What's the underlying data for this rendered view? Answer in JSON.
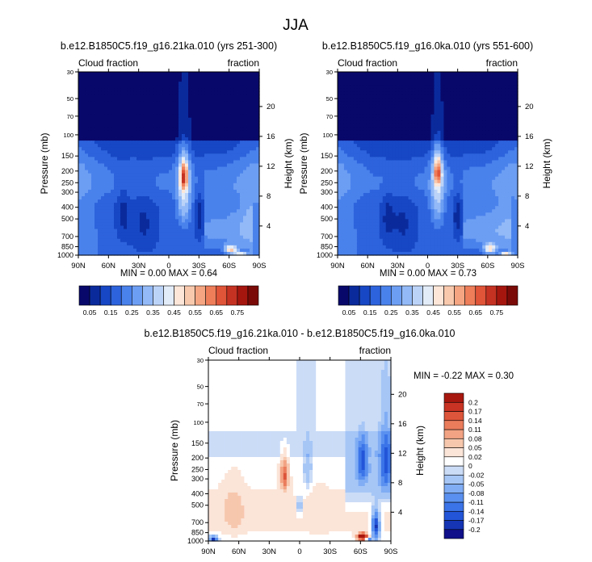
{
  "figure_title": "JJA",
  "chart_data": [
    {
      "type": "heatmap",
      "id": "case1",
      "title": "b.e12.B1850C5.f19_g16.21ka.010 (yrs 251-300)",
      "left_label": "Cloud fraction",
      "right_label": "fraction",
      "xlabel": "",
      "ylabel": "Pressure (mb)",
      "y2label": "Height (km)",
      "xlim": [
        90,
        -90
      ],
      "ylim": [
        1000,
        30
      ],
      "x_ticks": [
        {
          "value": 90,
          "label": "90N"
        },
        {
          "value": 60,
          "label": "60N"
        },
        {
          "value": 30,
          "label": "30N"
        },
        {
          "value": 0,
          "label": "0"
        },
        {
          "value": -30,
          "label": "30S"
        },
        {
          "value": -60,
          "label": "60S"
        },
        {
          "value": -90,
          "label": "90S"
        }
      ],
      "y_ticks": [
        1000,
        850,
        700,
        500,
        400,
        300,
        250,
        200,
        150,
        100,
        70,
        50,
        30
      ],
      "height_ticks": [
        {
          "value": 4,
          "label": "4"
        },
        {
          "value": 8,
          "label": "8"
        },
        {
          "value": 12,
          "label": "12"
        },
        {
          "value": 16,
          "label": "16"
        },
        {
          "value": 20,
          "label": "20"
        }
      ],
      "stats_text": "MIN =   0.00   MAX =   0.64",
      "min": 0.0,
      "max": 0.64,
      "colorbar_orientation": "horizontal",
      "colorbar_levels": [
        "0.05",
        "0.15",
        "0.25",
        "0.35",
        "0.45",
        "0.55",
        "0.65",
        "0.75"
      ],
      "features": [
        {
          "lat": -15,
          "p": 220,
          "value": 0.58,
          "lat_width": 4,
          "p_width": 60
        },
        {
          "lat": -15,
          "p": 320,
          "value": 0.4,
          "lat_width": 7,
          "p_width": 220
        },
        {
          "lat": -62,
          "p": 900,
          "value": 0.55,
          "lat_width": 6,
          "p_width": 70
        },
        {
          "lat": -72,
          "p": 985,
          "value": 0.6,
          "lat_width": 6,
          "p_width": 20
        },
        {
          "lat": -55,
          "p": 600,
          "value": 0.27,
          "lat_width": 15,
          "p_width": 300
        },
        {
          "lat": -80,
          "p": 480,
          "value": 0.33,
          "lat_width": 6,
          "p_width": 200
        },
        {
          "lat": 45,
          "p": 450,
          "value": 0.07,
          "lat_width": 6,
          "p_width": 220
        },
        {
          "lat": -30,
          "p": 480,
          "value": 0.06,
          "lat_width": 4,
          "p_width": 200
        },
        {
          "lat": 70,
          "p": 300,
          "value": 0.22,
          "lat_width": 18,
          "p_width": 150
        },
        {
          "lat": 70,
          "p": 850,
          "value": 0.2,
          "lat_width": 15,
          "p_width": 150
        }
      ]
    },
    {
      "type": "heatmap",
      "id": "case2",
      "title": "b.e12.B1850C5.f19_g16.0ka.010 (yrs 551-600)",
      "left_label": "Cloud fraction",
      "right_label": "fraction",
      "xlabel": "",
      "ylabel": "Pressure (mb)",
      "y2label": "Height (km)",
      "xlim": [
        90,
        -90
      ],
      "ylim": [
        1000,
        30
      ],
      "x_ticks": [
        {
          "value": 90,
          "label": "90N"
        },
        {
          "value": 60,
          "label": "60N"
        },
        {
          "value": 30,
          "label": "30N"
        },
        {
          "value": 0,
          "label": "0"
        },
        {
          "value": -30,
          "label": "30S"
        },
        {
          "value": -60,
          "label": "60S"
        },
        {
          "value": -90,
          "label": "90S"
        }
      ],
      "y_ticks": [
        1000,
        850,
        700,
        500,
        400,
        300,
        250,
        200,
        150,
        100,
        70,
        50,
        30
      ],
      "height_ticks": [
        {
          "value": 4,
          "label": "4"
        },
        {
          "value": 8,
          "label": "8"
        },
        {
          "value": 12,
          "label": "12"
        },
        {
          "value": 16,
          "label": "16"
        },
        {
          "value": 20,
          "label": "20"
        }
      ],
      "stats_text": "MIN =   0.00   MAX =   0.73",
      "min": 0.0,
      "max": 0.73,
      "colorbar_orientation": "horizontal",
      "colorbar_levels": [
        "0.05",
        "0.15",
        "0.25",
        "0.35",
        "0.45",
        "0.55",
        "0.65",
        "0.75"
      ],
      "features": [
        {
          "lat": -10,
          "p": 200,
          "value": 0.55,
          "lat_width": 4,
          "p_width": 60
        },
        {
          "lat": -10,
          "p": 320,
          "value": 0.38,
          "lat_width": 7,
          "p_width": 220
        },
        {
          "lat": -62,
          "p": 880,
          "value": 0.5,
          "lat_width": 6,
          "p_width": 80
        },
        {
          "lat": -78,
          "p": 985,
          "value": 0.72,
          "lat_width": 5,
          "p_width": 20
        },
        {
          "lat": -55,
          "p": 600,
          "value": 0.28,
          "lat_width": 15,
          "p_width": 300
        },
        {
          "lat": 40,
          "p": 500,
          "value": 0.07,
          "lat_width": 6,
          "p_width": 220
        },
        {
          "lat": -30,
          "p": 480,
          "value": 0.06,
          "lat_width": 4,
          "p_width": 200
        },
        {
          "lat": 70,
          "p": 300,
          "value": 0.22,
          "lat_width": 18,
          "p_width": 150
        },
        {
          "lat": 70,
          "p": 850,
          "value": 0.2,
          "lat_width": 15,
          "p_width": 150
        }
      ]
    },
    {
      "type": "heatmap",
      "id": "diff",
      "title": "b.e12.B1850C5.f19_g16.21ka.010 - b.e12.B1850C5.f19_g16.0ka.010",
      "left_label": "Cloud fraction",
      "right_label": "fraction",
      "xlabel": "",
      "ylabel": "Pressure (mb)",
      "y2label": "Height (km)",
      "xlim": [
        90,
        -90
      ],
      "ylim": [
        1000,
        30
      ],
      "x_ticks": [
        {
          "value": 90,
          "label": "90N"
        },
        {
          "value": 60,
          "label": "60N"
        },
        {
          "value": 30,
          "label": "30N"
        },
        {
          "value": 0,
          "label": "0"
        },
        {
          "value": -30,
          "label": "30S"
        },
        {
          "value": -60,
          "label": "60S"
        },
        {
          "value": -90,
          "label": "90S"
        }
      ],
      "y_ticks": [
        1000,
        850,
        700,
        500,
        400,
        300,
        250,
        200,
        150,
        100,
        70,
        50,
        30
      ],
      "height_ticks": [
        {
          "value": 4,
          "label": "4"
        },
        {
          "value": 8,
          "label": "8"
        },
        {
          "value": 12,
          "label": "12"
        },
        {
          "value": 16,
          "label": "16"
        },
        {
          "value": 20,
          "label": "20"
        }
      ],
      "stats_text": "MIN =  -0.22   MAX =   0.30",
      "min": -0.22,
      "max": 0.3,
      "colorbar_orientation": "vertical",
      "colorbar_levels": [
        "-0.2",
        "-0.17",
        "-0.14",
        "-0.11",
        "-0.08",
        "-0.05",
        "-0.02",
        "0",
        "0.02",
        "0.05",
        "0.08",
        "0.11",
        "0.14",
        "0.17",
        "0.2"
      ],
      "features": [
        {
          "lat": -62,
          "p": 920,
          "value": 0.28,
          "lat_width": 5,
          "p_width": 70
        },
        {
          "lat": -68,
          "p": 985,
          "value": -0.2,
          "lat_width": 3,
          "p_width": 25
        },
        {
          "lat": -75,
          "p": 750,
          "value": -0.18,
          "lat_width": 4,
          "p_width": 200
        },
        {
          "lat": 85,
          "p": 960,
          "value": -0.18,
          "lat_width": 4,
          "p_width": 50
        },
        {
          "lat": -62,
          "p": 220,
          "value": -0.16,
          "lat_width": 5,
          "p_width": 90
        },
        {
          "lat": -85,
          "p": 220,
          "value": -0.15,
          "lat_width": 6,
          "p_width": 150
        },
        {
          "lat": 15,
          "p": 280,
          "value": 0.15,
          "lat_width": 4,
          "p_width": 90
        },
        {
          "lat": 65,
          "p": 560,
          "value": 0.08,
          "lat_width": 10,
          "p_width": 250
        },
        {
          "lat": -20,
          "p": 640,
          "value": 0.05,
          "lat_width": 8,
          "p_width": 250
        },
        {
          "lat": 0,
          "p": 500,
          "value": -0.04,
          "lat_width": 3,
          "p_width": 100
        },
        {
          "lat": -8,
          "p": 250,
          "value": -0.05,
          "lat_width": 4,
          "p_width": 100
        }
      ]
    }
  ]
}
